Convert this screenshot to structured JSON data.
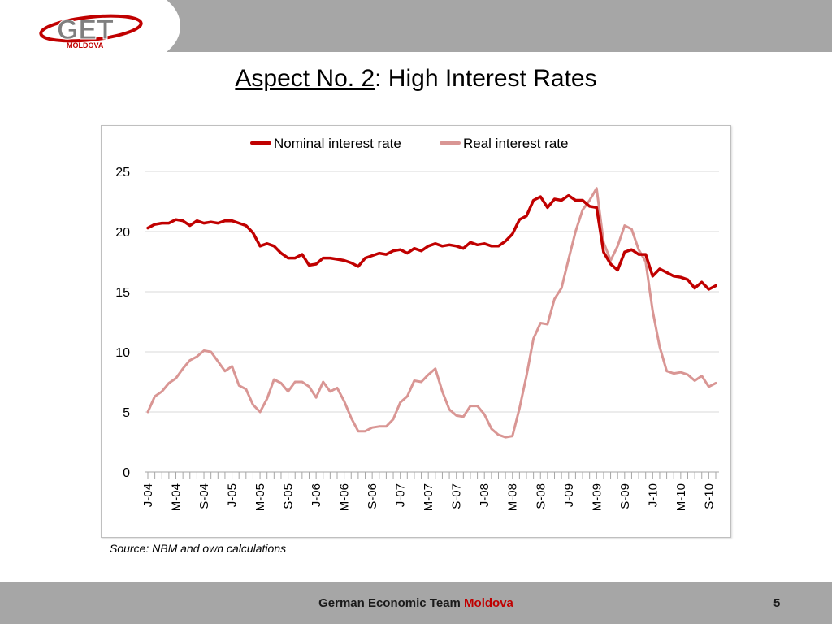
{
  "header": {
    "logo_text": "GET",
    "logo_sub": "MOLDOVA"
  },
  "slide": {
    "title_underlined": "Aspect No. 2",
    "title_rest": ": High Interest Rates",
    "source": "Source: NBM and own calculations"
  },
  "footer": {
    "team_text": "German Economic Team",
    "team_accent": "Moldova",
    "page_number": "5"
  },
  "colors": {
    "nominal": "#c00000",
    "real": "#d99694",
    "bar": "#a6a6a6"
  },
  "chart_data": {
    "type": "line",
    "ylim": [
      0,
      25
    ],
    "yticks": [
      0,
      5,
      10,
      15,
      20,
      25
    ],
    "grid": true,
    "legend": "top",
    "x_tick_labels": [
      "J-04",
      "M-04",
      "S-04",
      "J-05",
      "M-05",
      "S-05",
      "J-06",
      "M-06",
      "S-06",
      "J-07",
      "M-07",
      "S-07",
      "J-08",
      "M-08",
      "S-08",
      "J-09",
      "M-09",
      "S-09",
      "J-10",
      "M-10",
      "S-10"
    ],
    "months": [
      "Jan-04",
      "Feb-04",
      "Mar-04",
      "Apr-04",
      "May-04",
      "Jun-04",
      "Jul-04",
      "Aug-04",
      "Sep-04",
      "Oct-04",
      "Nov-04",
      "Dec-04",
      "Jan-05",
      "Feb-05",
      "Mar-05",
      "Apr-05",
      "May-05",
      "Jun-05",
      "Jul-05",
      "Aug-05",
      "Sep-05",
      "Oct-05",
      "Nov-05",
      "Dec-05",
      "Jan-06",
      "Feb-06",
      "Mar-06",
      "Apr-06",
      "May-06",
      "Jun-06",
      "Jul-06",
      "Aug-06",
      "Sep-06",
      "Oct-06",
      "Nov-06",
      "Dec-06",
      "Jan-07",
      "Feb-07",
      "Mar-07",
      "Apr-07",
      "May-07",
      "Jun-07",
      "Jul-07",
      "Aug-07",
      "Sep-07",
      "Oct-07",
      "Nov-07",
      "Dec-07",
      "Jan-08",
      "Feb-08",
      "Mar-08",
      "Apr-08",
      "May-08",
      "Jun-08",
      "Jul-08",
      "Aug-08",
      "Sep-08",
      "Oct-08",
      "Nov-08",
      "Dec-08",
      "Jan-09",
      "Feb-09",
      "Mar-09",
      "Apr-09",
      "May-09",
      "Jun-09",
      "Jul-09",
      "Aug-09",
      "Sep-09",
      "Oct-09",
      "Nov-09",
      "Dec-09",
      "Jan-10",
      "Feb-10",
      "Mar-10",
      "Apr-10",
      "May-10",
      "Jun-10",
      "Jul-10",
      "Aug-10",
      "Sep-10",
      "Oct-10"
    ],
    "series": [
      {
        "name": "Nominal interest rate",
        "values": [
          20.3,
          20.6,
          20.7,
          20.7,
          21.0,
          20.9,
          20.5,
          20.9,
          20.7,
          20.8,
          20.7,
          20.9,
          20.9,
          20.7,
          20.5,
          19.9,
          18.8,
          19.0,
          18.8,
          18.2,
          17.8,
          17.8,
          18.1,
          17.2,
          17.3,
          17.8,
          17.8,
          17.7,
          17.6,
          17.4,
          17.1,
          17.8,
          18.0,
          18.2,
          18.1,
          18.4,
          18.5,
          18.2,
          18.6,
          18.4,
          18.8,
          19.0,
          18.8,
          18.9,
          18.8,
          18.6,
          19.1,
          18.9,
          19.0,
          18.8,
          18.8,
          19.2,
          19.8,
          21.0,
          21.3,
          22.6,
          22.9,
          22.0,
          22.7,
          22.6,
          23.0,
          22.6,
          22.6,
          22.1,
          22.0,
          18.3,
          17.3,
          16.8,
          18.3,
          18.5,
          18.1,
          18.1,
          16.3,
          16.9,
          16.6,
          16.3,
          16.2,
          16.0,
          15.3,
          15.8,
          15.2,
          15.5
        ]
      },
      {
        "name": "Real interest rate",
        "values": [
          5.0,
          6.3,
          6.7,
          7.4,
          7.8,
          8.6,
          9.3,
          9.6,
          10.1,
          10.0,
          9.2,
          8.4,
          8.8,
          7.2,
          6.9,
          5.6,
          5.0,
          6.1,
          7.7,
          7.4,
          6.7,
          7.5,
          7.5,
          7.1,
          6.2,
          7.5,
          6.7,
          7.0,
          5.9,
          4.5,
          3.4,
          3.4,
          3.7,
          3.8,
          3.8,
          4.4,
          5.8,
          6.3,
          7.6,
          7.5,
          8.1,
          8.6,
          6.7,
          5.2,
          4.7,
          4.6,
          5.5,
          5.5,
          4.8,
          3.6,
          3.1,
          2.9,
          3.0,
          5.3,
          8.0,
          11.1,
          12.4,
          12.3,
          14.4,
          15.3,
          17.7,
          20.0,
          21.8,
          22.6,
          23.6,
          19.1,
          17.6,
          18.8,
          20.5,
          20.2,
          18.5,
          17.5,
          13.4,
          10.4,
          8.4,
          8.2,
          8.3,
          8.1,
          7.6,
          8.0,
          7.1,
          7.4
        ]
      }
    ]
  }
}
